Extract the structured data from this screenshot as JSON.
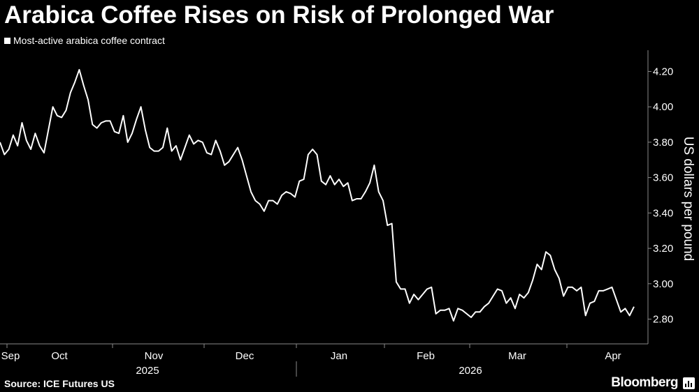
{
  "header": {
    "title": "Arabica Coffee Rises on Risk of Prolonged War",
    "legend_label": "Most-active arabica coffee contract"
  },
  "footer": {
    "source": "Source: ICE Futures US",
    "brand": "Bloomberg",
    "brand_icon": "bloomberg-chart-icon"
  },
  "colors": {
    "background": "#000000",
    "line": "#ffffff",
    "axis": "#8a8a8a"
  },
  "chart_data": {
    "type": "line",
    "ylabel": "US dollars per pound",
    "ylim": [
      2.66,
      4.32
    ],
    "y_ticks": [
      "2.80",
      "3.00",
      "3.20",
      "3.40",
      "3.60",
      "3.80",
      "4.00",
      "4.20"
    ],
    "y_tick_values": [
      2.8,
      3.0,
      3.2,
      3.4,
      3.6,
      3.8,
      4.0,
      4.2
    ],
    "x_month_labels": [
      "Sep",
      "Oct",
      "Nov",
      "Dec",
      "Jan",
      "Feb",
      "Mar",
      "Apr"
    ],
    "x_year_labels": [
      "2025",
      "2026"
    ],
    "grid": false,
    "axis_side": "right",
    "series": [
      {
        "values": [
          3.8,
          3.73,
          3.76,
          3.84,
          3.78,
          3.91,
          3.81,
          3.76,
          3.85,
          3.78,
          3.74,
          3.87,
          4.0,
          3.95,
          3.94,
          3.98,
          4.08,
          4.14,
          4.21,
          4.12,
          4.04,
          3.9,
          3.88,
          3.91,
          3.92,
          3.92,
          3.86,
          3.85,
          3.95,
          3.8,
          3.85,
          3.93,
          4.0,
          3.87,
          3.77,
          3.75,
          3.75,
          3.77,
          3.88,
          3.75,
          3.78,
          3.7,
          3.77,
          3.84,
          3.79,
          3.81,
          3.8,
          3.74,
          3.73,
          3.81,
          3.75,
          3.67,
          3.69,
          3.73,
          3.77,
          3.7,
          3.61,
          3.52,
          3.47,
          3.45,
          3.41,
          3.47,
          3.47,
          3.45,
          3.5,
          3.52,
          3.51,
          3.49,
          3.58,
          3.59,
          3.73,
          3.76,
          3.73,
          3.58,
          3.56,
          3.61,
          3.56,
          3.59,
          3.55,
          3.57,
          3.47,
          3.48,
          3.48,
          3.52,
          3.57,
          3.67,
          3.52,
          3.47,
          3.33,
          3.34,
          3.01,
          2.97,
          2.97,
          2.89,
          2.94,
          2.91,
          2.94,
          2.97,
          2.98,
          2.83,
          2.85,
          2.85,
          2.86,
          2.79,
          2.86,
          2.85,
          2.83,
          2.81,
          2.84,
          2.84,
          2.87,
          2.89,
          2.93,
          2.97,
          2.96,
          2.89,
          2.92,
          2.86,
          2.94,
          2.92,
          2.95,
          3.02,
          3.11,
          3.08,
          3.18,
          3.16,
          3.08,
          3.03,
          2.93,
          2.98,
          2.98,
          2.96,
          2.98,
          2.82,
          2.89,
          2.9,
          2.96,
          2.96,
          2.97,
          2.98,
          2.91,
          2.84,
          2.86,
          2.82,
          2.87
        ]
      }
    ]
  }
}
